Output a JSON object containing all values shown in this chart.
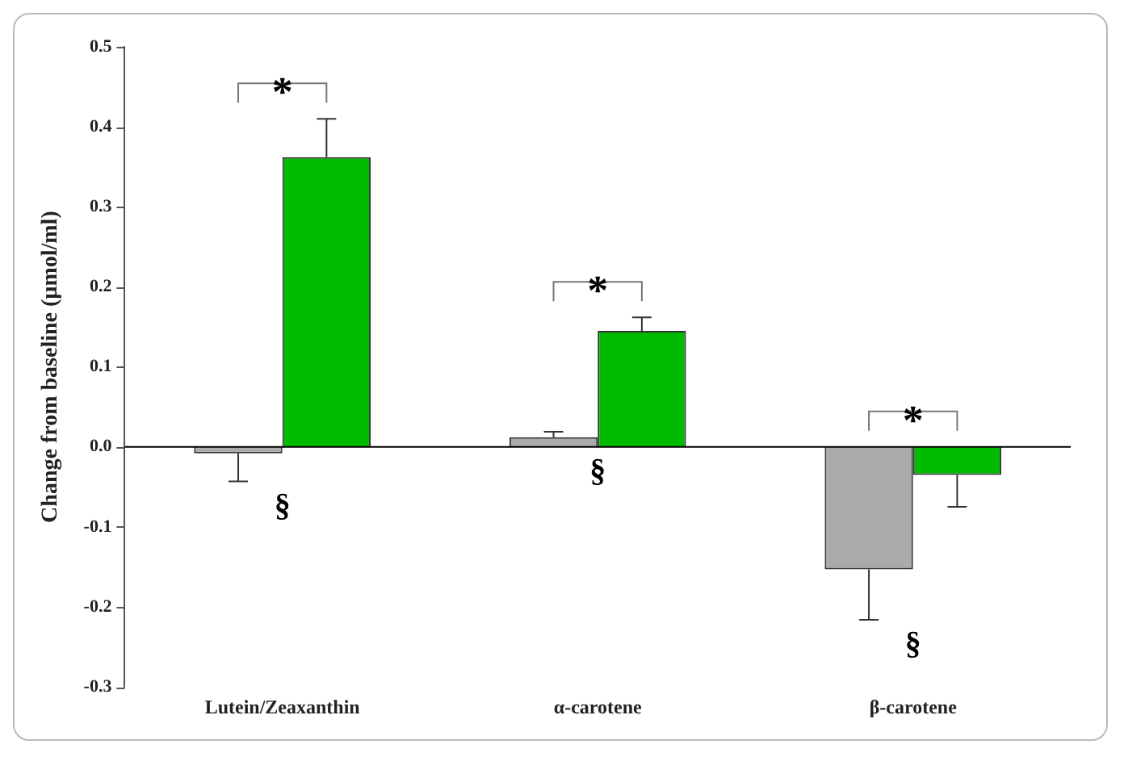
{
  "chart_data": {
    "type": "bar",
    "ylabel": "Change from baseline (µmol/ml)",
    "categories": [
      "Lutein/Zeaxanthin",
      "α-carotene",
      "β-carotene"
    ],
    "series": [
      {
        "color": "#aaaaaa",
        "values": [
          -0.008,
          0.012,
          -0.153
        ],
        "errors": [
          [
            -0.043,
            -0.008
          ],
          [
            0.012,
            0.019
          ],
          [
            -0.216,
            -0.153
          ]
        ]
      },
      {
        "color": "#00bb00",
        "values": [
          0.362,
          0.145,
          -0.035
        ],
        "errors": [
          [
            0.362,
            0.41
          ],
          [
            0.145,
            0.162
          ],
          [
            -0.075,
            -0.035
          ]
        ]
      }
    ],
    "ylim": [
      -0.3,
      0.5
    ],
    "yticks": [
      {
        "value": -0.3,
        "label": "-0.3"
      },
      {
        "value": -0.2,
        "label": "-0.2"
      },
      {
        "value": -0.1,
        "label": "-0.1"
      },
      {
        "value": 0,
        "label": "0.0"
      },
      {
        "value": 0.1,
        "label": "0.1"
      },
      {
        "value": 0.2,
        "label": "0.2"
      },
      {
        "value": 0.3,
        "label": "0.3"
      },
      {
        "value": 0.4,
        "label": "0.4"
      },
      {
        "value": 0.5,
        "label": "0.5"
      }
    ],
    "grid": false,
    "legend": false,
    "ref_lines": [
      {
        "axis": "y",
        "value": 0,
        "color": "#000000"
      }
    ],
    "annotations": [
      "*",
      "*",
      "*",
      "§",
      "§",
      "§"
    ]
  }
}
